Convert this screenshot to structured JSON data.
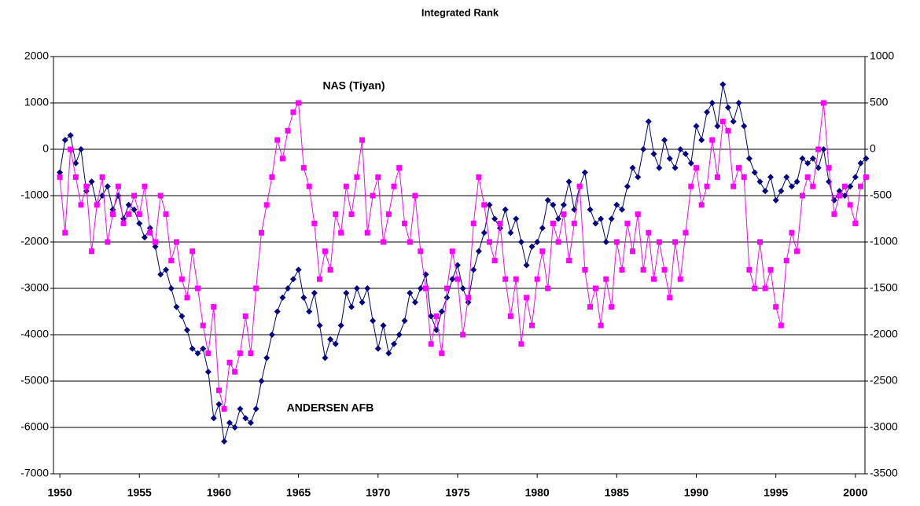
{
  "chart_data": {
    "type": "line",
    "title": "Integrated Rank",
    "x": [
      1950,
      1950.33,
      1950.67,
      1951,
      1951.33,
      1951.67,
      1952,
      1952.33,
      1952.67,
      1953,
      1953.33,
      1953.67,
      1954,
      1954.33,
      1954.67,
      1955,
      1955.33,
      1955.67,
      1956,
      1956.33,
      1956.67,
      1957,
      1957.33,
      1957.67,
      1958,
      1958.33,
      1958.67,
      1959,
      1959.33,
      1959.67,
      1960,
      1960.33,
      1960.67,
      1961,
      1961.33,
      1961.67,
      1962,
      1962.33,
      1962.67,
      1963,
      1963.33,
      1963.67,
      1964,
      1964.33,
      1964.67,
      1965,
      1965.33,
      1965.67,
      1966,
      1966.33,
      1966.67,
      1967,
      1967.33,
      1967.67,
      1968,
      1968.33,
      1968.67,
      1969,
      1969.33,
      1969.67,
      1970,
      1970.33,
      1970.67,
      1971,
      1971.33,
      1971.67,
      1972,
      1972.33,
      1972.67,
      1973,
      1973.33,
      1973.67,
      1974,
      1974.33,
      1974.67,
      1975,
      1975.33,
      1975.67,
      1976,
      1976.33,
      1976.67,
      1977,
      1977.33,
      1977.67,
      1978,
      1978.33,
      1978.67,
      1979,
      1979.33,
      1979.67,
      1980,
      1980.33,
      1980.67,
      1981,
      1981.33,
      1981.67,
      1982,
      1982.33,
      1982.67,
      1983,
      1983.33,
      1983.67,
      1984,
      1984.33,
      1984.67,
      1985,
      1985.33,
      1985.67,
      1986,
      1986.33,
      1986.67,
      1987,
      1987.33,
      1987.67,
      1988,
      1988.33,
      1988.67,
      1989,
      1989.33,
      1989.67,
      1990,
      1990.33,
      1990.67,
      1991,
      1991.33,
      1991.67,
      1992,
      1992.33,
      1992.67,
      1993,
      1993.33,
      1993.67,
      1994,
      1994.33,
      1994.67,
      1995,
      1995.33,
      1995.67,
      1996,
      1996.33,
      1996.67,
      1997,
      1997.33,
      1997.67,
      1998,
      1998.33,
      1998.67,
      1999,
      1999.33,
      1999.67,
      2000,
      2000.33,
      2000.67
    ],
    "series": [
      {
        "name": "ANDERSEN AFB",
        "color": "#000080",
        "marker": "diamond",
        "values": [
          -500,
          200,
          300,
          -300,
          0,
          -900,
          -700,
          -1200,
          -1000,
          -800,
          -1300,
          -1000,
          -1500,
          -1200,
          -1300,
          -1600,
          -1900,
          -1700,
          -2100,
          -2700,
          -2600,
          -3000,
          -3400,
          -3600,
          -3900,
          -4300,
          -4400,
          -4300,
          -4800,
          -5800,
          -5500,
          -6300,
          -5900,
          -6000,
          -5600,
          -5800,
          -5900,
          -5600,
          -5000,
          -4500,
          -4000,
          -3500,
          -3200,
          -3000,
          -2800,
          -2600,
          -3200,
          -3500,
          -3100,
          -3800,
          -4500,
          -4100,
          -4200,
          -3800,
          -3100,
          -3400,
          -3000,
          -3300,
          -3000,
          -3700,
          -4300,
          -3800,
          -4400,
          -4200,
          -4000,
          -3700,
          -3100,
          -3300,
          -3000,
          -2700,
          -3600,
          -3900,
          -3500,
          -3200,
          -2800,
          -2500,
          -3000,
          -3300,
          -2600,
          -2200,
          -1800,
          -1200,
          -1500,
          -1700,
          -1300,
          -1800,
          -1500,
          -2000,
          -2500,
          -2100,
          -2000,
          -1700,
          -1100,
          -1200,
          -1500,
          -1200,
          -700,
          -1300,
          -800,
          -500,
          -1300,
          -1600,
          -1500,
          -2000,
          -1500,
          -1200,
          -1300,
          -800,
          -400,
          -600,
          0,
          600,
          -100,
          -400,
          200,
          -200,
          -400,
          0,
          -100,
          -300,
          500,
          200,
          800,
          1000,
          500,
          1400,
          900,
          600,
          1000,
          500,
          -200,
          -500,
          -700,
          -900,
          -600,
          -1100,
          -900,
          -600,
          -800,
          -700,
          -200,
          -300,
          -200,
          -400,
          0,
          -700,
          -1100,
          -900,
          -1000,
          -800,
          -600,
          -300,
          -200
        ]
      },
      {
        "name": "NAS (Tiyan)",
        "color": "#ff00ff",
        "marker": "square",
        "axis": "y2",
        "values": [
          -300,
          -900,
          0,
          -300,
          -600,
          -400,
          -1100,
          -600,
          -300,
          -1000,
          -700,
          -400,
          -800,
          -700,
          -500,
          -700,
          -400,
          -900,
          -1000,
          -500,
          -700,
          -1200,
          -1000,
          -1400,
          -1600,
          -1100,
          -1500,
          -1900,
          -2200,
          -1700,
          -2600,
          -2800,
          -2300,
          -2400,
          -2200,
          -1800,
          -2200,
          -1500,
          -900,
          -600,
          -300,
          100,
          -100,
          200,
          400,
          500,
          -200,
          -400,
          -800,
          -1400,
          -1100,
          -1300,
          -700,
          -900,
          -400,
          -700,
          -300,
          100,
          -900,
          -500,
          -300,
          -1000,
          -700,
          -400,
          -200,
          -800,
          -1000,
          -500,
          -1100,
          -1500,
          -2100,
          -1800,
          -2200,
          -1500,
          -1100,
          -1400,
          -2000,
          -1600,
          -800,
          -300,
          -600,
          -1000,
          -1200,
          -800,
          -1400,
          -1800,
          -1400,
          -2100,
          -1600,
          -1900,
          -1400,
          -1100,
          -1500,
          -800,
          -1000,
          -700,
          -1200,
          -800,
          -400,
          -1300,
          -1700,
          -1500,
          -1900,
          -1400,
          -1700,
          -1000,
          -1300,
          -800,
          -1100,
          -700,
          -1300,
          -900,
          -1400,
          -1000,
          -1300,
          -1600,
          -1000,
          -1400,
          -900,
          -400,
          -200,
          -600,
          -400,
          100,
          -300,
          300,
          200,
          -400,
          -200,
          -300,
          -1300,
          -1500,
          -1000,
          -1500,
          -1300,
          -1700,
          -1900,
          -1200,
          -900,
          -1100,
          -500,
          -300,
          -400,
          0,
          500,
          -200,
          -700,
          -500,
          -400,
          -600,
          -800,
          -400,
          -300
        ]
      }
    ],
    "xlim": [
      1949.6,
      2000.6
    ],
    "xticks": [
      1950,
      1955,
      1960,
      1965,
      1970,
      1975,
      1980,
      1985,
      1990,
      1995,
      2000
    ],
    "ylim": [
      -7000,
      2000
    ],
    "yticks": [
      -7000,
      -6000,
      -5000,
      -4000,
      -3000,
      -2000,
      -1000,
      0,
      1000,
      2000
    ],
    "y2lim": [
      -3500,
      1000
    ],
    "y2ticks": [
      -3500,
      -3000,
      -2500,
      -2000,
      -1500,
      -1000,
      -500,
      0,
      500,
      1000
    ],
    "grid": true
  }
}
